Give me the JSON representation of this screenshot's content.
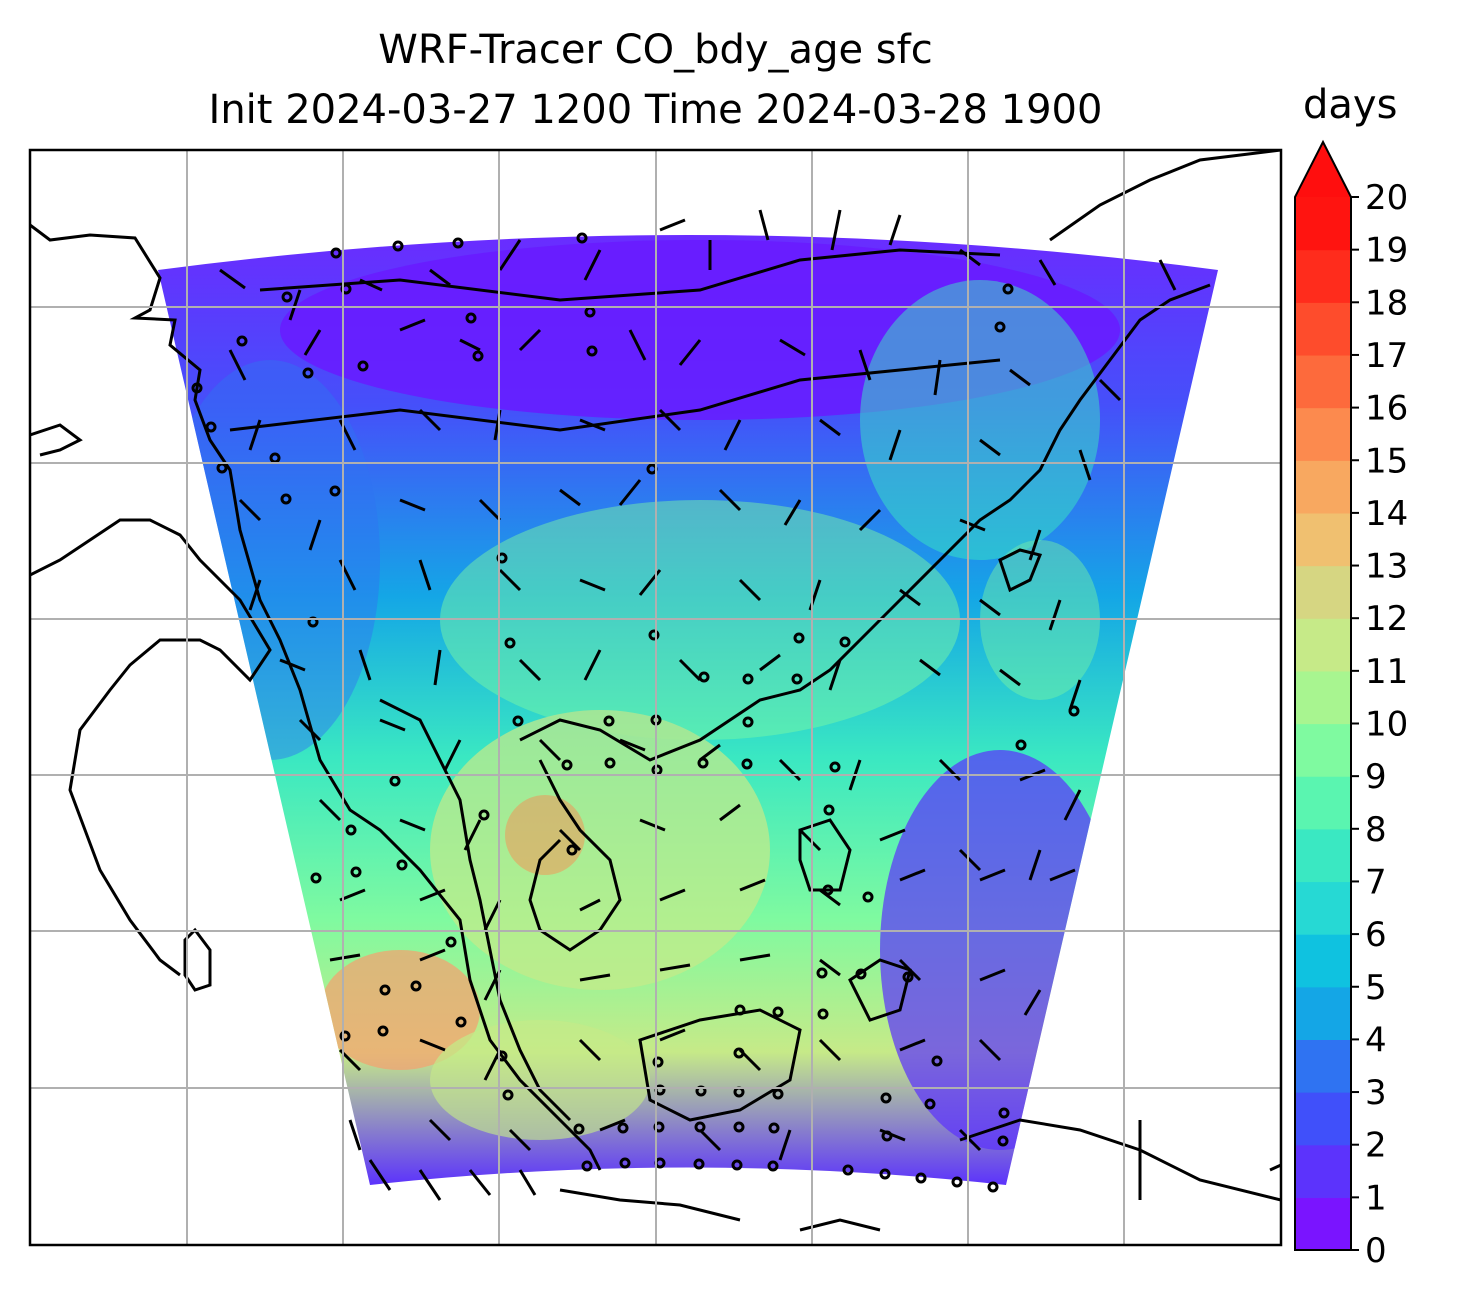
{
  "title": {
    "line1": "WRF-Tracer CO_bdy_age sfc",
    "line2": "Init 2024-03-27 1200 Time 2024-03-28 1900"
  },
  "colorbar": {
    "label": "days",
    "ticks": [
      "0",
      "1",
      "2",
      "3",
      "4",
      "5",
      "6",
      "7",
      "8",
      "9",
      "10",
      "11",
      "12",
      "13",
      "14",
      "15",
      "16",
      "17",
      "18",
      "19",
      "20"
    ],
    "colors": [
      "#7a14ff",
      "#5c33fc",
      "#4050fa",
      "#2f73f2",
      "#14a6e6",
      "#0fc2e0",
      "#26d9d4",
      "#3ae8c2",
      "#5af5b0",
      "#7ffaa0",
      "#a8f590",
      "#c6ea88",
      "#d6d682",
      "#f0c070",
      "#f8a860",
      "#fc8a4e",
      "#fd6a3c",
      "#fe4c2c",
      "#ff2c1c",
      "#ff1410"
    ],
    "extend_color": "#ff0e0e"
  },
  "map": {
    "field": "CO boundary tracer age (days)",
    "wind_barbs": true,
    "coastlines": true,
    "gridlines": true
  }
}
